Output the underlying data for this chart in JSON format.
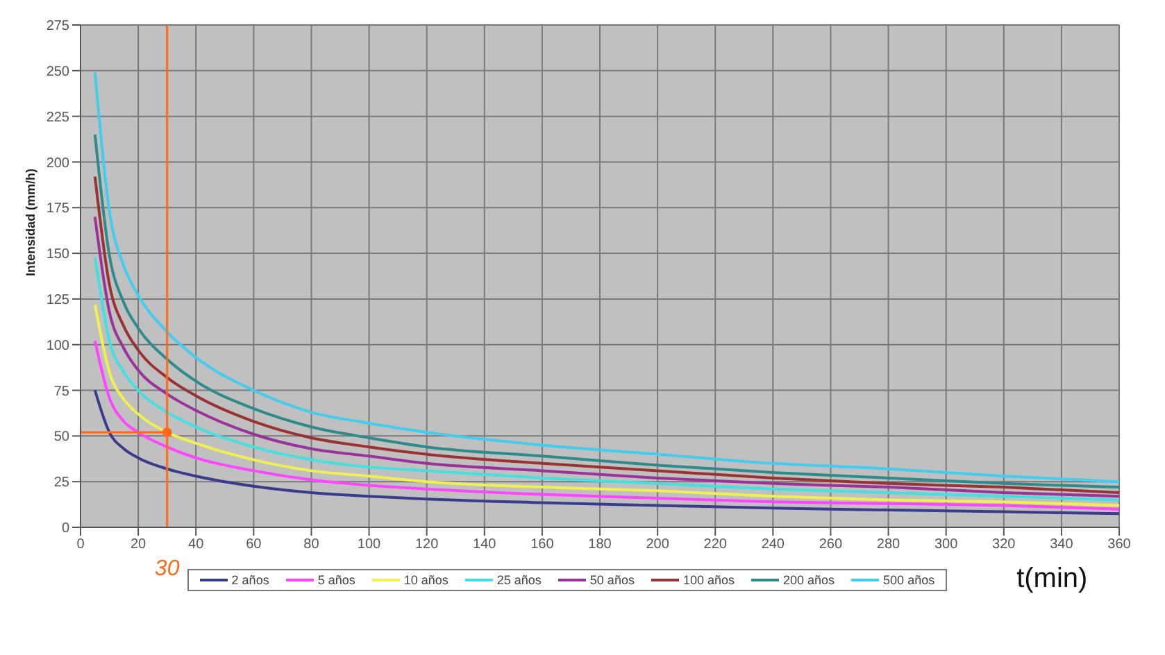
{
  "chart_data": {
    "type": "line",
    "xlabel": "t(min)",
    "ylabel": "Intensidad (mm/h)",
    "x": [
      5,
      10,
      15,
      20,
      30,
      40,
      60,
      80,
      100,
      120,
      160,
      200,
      240,
      280,
      320,
      360
    ],
    "series": [
      {
        "name": "2 años",
        "color": "#3b3b8c",
        "values": [
          75,
          52,
          43,
          38,
          32,
          28,
          22.5,
          19,
          17,
          15.5,
          13.5,
          12,
          10.5,
          9.5,
          8.5,
          7.5
        ]
      },
      {
        "name": "5 años",
        "color": "#ff44ff",
        "values": [
          102,
          71,
          58,
          52,
          44,
          38,
          31,
          26,
          23,
          21,
          18,
          16,
          14,
          13,
          12,
          10
        ]
      },
      {
        "name": "10 años",
        "color": "#f0f050",
        "values": [
          122,
          85,
          70,
          62,
          52,
          46,
          37,
          31,
          28,
          25,
          22,
          20,
          17,
          15,
          14,
          12
        ]
      },
      {
        "name": "25 años",
        "color": "#44e0e0",
        "values": [
          148,
          102,
          85,
          75,
          63,
          55,
          44,
          37,
          33,
          31,
          27,
          24,
          21,
          19,
          17,
          15
        ]
      },
      {
        "name": "50 años",
        "color": "#993399",
        "values": [
          170,
          118,
          98,
          86,
          73,
          64,
          51,
          43,
          39,
          35,
          31,
          27,
          24,
          22,
          19,
          17
        ]
      },
      {
        "name": "100 años",
        "color": "#993333",
        "values": [
          192,
          133,
          110,
          97,
          82,
          72,
          58,
          49,
          44,
          40,
          35,
          31,
          27,
          24,
          22,
          19
        ]
      },
      {
        "name": "200 años",
        "color": "#2e8b8b",
        "values": [
          215,
          149,
          123,
          109,
          92,
          80,
          65,
          55,
          49,
          44,
          39,
          34,
          30,
          27,
          24,
          22
        ]
      },
      {
        "name": "500 años",
        "color": "#44ccee",
        "values": [
          249,
          173,
          143,
          127,
          107,
          93,
          75,
          63,
          57,
          52,
          45,
          40,
          35,
          32,
          28,
          25
        ]
      }
    ],
    "xlim": [
      0,
      360
    ],
    "xticks": [
      0,
      20,
      40,
      60,
      80,
      100,
      120,
      140,
      160,
      180,
      200,
      220,
      240,
      260,
      280,
      300,
      320,
      340,
      360
    ],
    "ylim": [
      0,
      275
    ],
    "yticks": [
      0,
      25,
      50,
      75,
      100,
      125,
      150,
      175,
      200,
      225,
      250,
      275
    ],
    "ref_lines": [
      {
        "axis": "x",
        "value": 30,
        "label": "30",
        "color": "#ff6a1a"
      },
      {
        "axis": "y",
        "value": 52,
        "label": null,
        "color": "#ff6a1a"
      }
    ],
    "grid": true,
    "legend": "bottom",
    "marker": "none",
    "line_style": "solid"
  }
}
